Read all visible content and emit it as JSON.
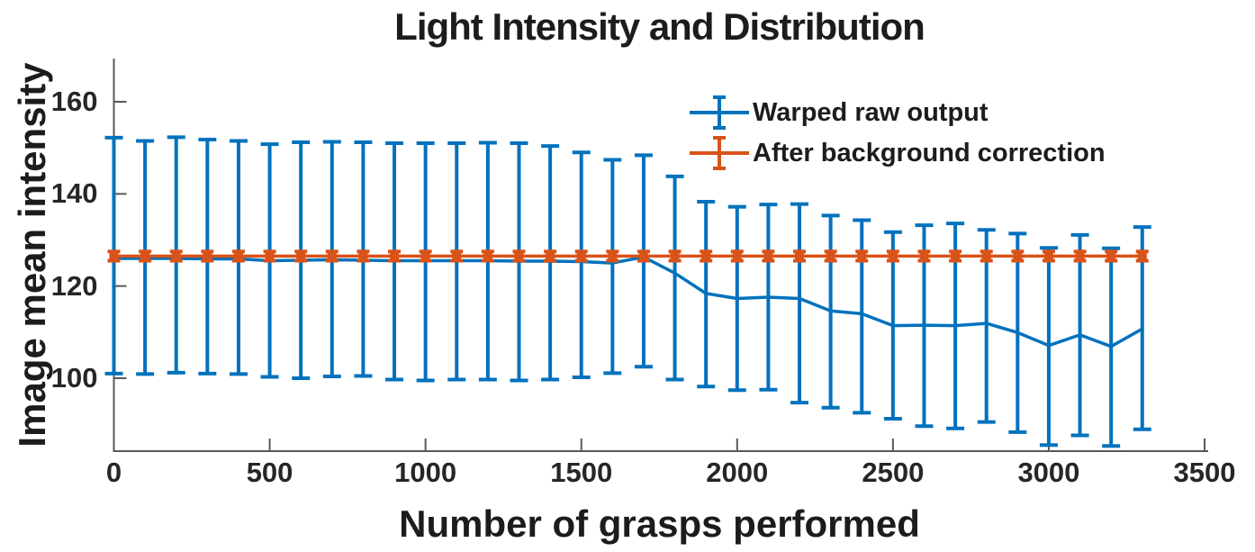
{
  "chart_data": {
    "type": "line",
    "subtype": "errorbar",
    "title": "Light Intensity and Distribution",
    "xlabel": "Number of grasps performed",
    "ylabel": "Image mean intensity",
    "xlim": [
      0,
      3500
    ],
    "ylim": [
      84,
      169.5
    ],
    "xticks": [
      0,
      500,
      1000,
      1500,
      2000,
      2500,
      3000,
      3500
    ],
    "yticks": [
      100,
      120,
      140,
      160
    ],
    "grid": "off",
    "legend_position": "upper-right-inside-no-box",
    "axis_color": "#595959",
    "text_color": "#1c1c1c",
    "x": [
      0,
      100,
      200,
      300,
      400,
      500,
      600,
      700,
      800,
      900,
      1000,
      1100,
      1200,
      1300,
      1400,
      1500,
      1600,
      1700,
      1800,
      1900,
      2000,
      2100,
      2200,
      2300,
      2400,
      2500,
      2600,
      2700,
      2800,
      2900,
      3000,
      3100,
      3200,
      3300
    ],
    "series": [
      {
        "name": "Warped raw output",
        "color": "#0072BD",
        "marker": "none",
        "mean": [
          126.0,
          126.0,
          126.0,
          125.9,
          125.9,
          125.5,
          125.6,
          125.7,
          125.6,
          125.5,
          125.5,
          125.5,
          125.5,
          125.4,
          125.4,
          125.3,
          125.0,
          126.3,
          122.8,
          118.4,
          117.3,
          117.6,
          117.3,
          114.6,
          114.0,
          111.4,
          111.5,
          111.4,
          111.9,
          109.9,
          107.1,
          109.4,
          106.9,
          110.7
        ],
        "upper": [
          152.2,
          151.5,
          152.3,
          151.8,
          151.5,
          150.8,
          151.2,
          151.3,
          151.2,
          151.0,
          151.0,
          151.0,
          151.1,
          151.0,
          150.4,
          149.0,
          147.4,
          148.4,
          143.8,
          138.3,
          137.2,
          137.7,
          137.8,
          135.3,
          134.3,
          131.7,
          133.2,
          133.6,
          132.2,
          131.4,
          128.3,
          131.1,
          128.2,
          132.8
        ],
        "lower": [
          101.0,
          100.9,
          101.2,
          101.0,
          100.9,
          100.3,
          100.0,
          100.4,
          100.5,
          99.7,
          99.5,
          99.7,
          99.7,
          99.5,
          99.7,
          100.2,
          101.1,
          102.5,
          99.7,
          98.2,
          97.4,
          97.5,
          94.7,
          93.6,
          92.5,
          91.2,
          89.6,
          89.1,
          90.5,
          88.3,
          85.5,
          87.6,
          85.3,
          88.9
        ]
      },
      {
        "name": "After background correction",
        "color": "#D95319",
        "marker": "square",
        "mean": [
          126.5,
          126.5,
          126.5,
          126.5,
          126.5,
          126.5,
          126.5,
          126.5,
          126.5,
          126.5,
          126.5,
          126.5,
          126.5,
          126.5,
          126.5,
          126.5,
          126.5,
          126.5,
          126.5,
          126.5,
          126.5,
          126.5,
          126.5,
          126.5,
          126.5,
          126.5,
          126.5,
          126.5,
          126.5,
          126.5,
          126.5,
          126.5,
          126.5,
          126.5
        ],
        "upper": [
          127.5,
          127.5,
          127.5,
          127.5,
          127.5,
          127.5,
          127.5,
          127.5,
          127.5,
          127.5,
          127.5,
          127.5,
          127.5,
          127.5,
          127.5,
          127.5,
          127.5,
          127.5,
          127.5,
          127.5,
          127.5,
          127.5,
          127.5,
          127.5,
          127.5,
          127.5,
          127.5,
          127.5,
          127.5,
          127.5,
          127.5,
          127.5,
          127.5,
          127.5
        ],
        "lower": [
          125.5,
          125.5,
          125.5,
          125.5,
          125.5,
          125.5,
          125.5,
          125.5,
          125.5,
          125.5,
          125.5,
          125.5,
          125.5,
          125.5,
          125.5,
          125.5,
          125.5,
          125.5,
          125.5,
          125.5,
          125.5,
          125.5,
          125.5,
          125.5,
          125.5,
          125.5,
          125.5,
          125.5,
          125.5,
          125.5,
          125.5,
          125.5,
          125.5,
          125.5
        ]
      }
    ]
  }
}
